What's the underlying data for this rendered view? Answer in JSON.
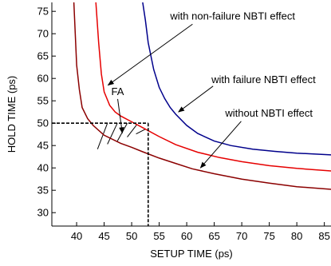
{
  "chart_data": {
    "type": "line",
    "title": "",
    "xlabel": "SETUP TIME  (ps)",
    "ylabel": "HOLD TIME (ps)",
    "xlim": [
      37,
      86.5
    ],
    "ylim": [
      27,
      77
    ],
    "xticks": [
      40,
      45,
      50,
      55,
      60,
      65,
      70,
      75,
      80,
      85
    ],
    "yticks": [
      30,
      35,
      40,
      45,
      50,
      55,
      60,
      65,
      70,
      75
    ],
    "grid": false,
    "series": [
      {
        "color": "#8b0000",
        "x": [
          39.5,
          40.0,
          40.5,
          41.0,
          42.0,
          43.0,
          45.0,
          48.0,
          50.0,
          52.0,
          55.0,
          58.0,
          61.0,
          65.0,
          70.0,
          75.0,
          80.0,
          86.5
        ],
        "y": [
          77,
          63,
          57.5,
          53.5,
          51,
          49.5,
          47.3,
          45.5,
          44.6,
          43.6,
          42.2,
          41.0,
          39.8,
          38.7,
          37.5,
          36.6,
          35.8,
          35.2
        ]
      },
      {
        "color": "#e60000",
        "x": [
          43.5,
          44.0,
          44.5,
          45.0,
          46.0,
          47.0,
          48.0,
          50.0,
          52.0,
          55.0,
          58.0,
          62.0,
          66.0,
          70.0,
          75.0,
          80.0,
          86.5
        ],
        "y": [
          77,
          68,
          61,
          57,
          54,
          52.5,
          51.6,
          50.3,
          49.0,
          47.0,
          45.2,
          43.5,
          42.3,
          41.4,
          40.5,
          39.9,
          39.3
        ]
      },
      {
        "color": "#00008b",
        "x": [
          52.0,
          52.5,
          53.0,
          54.0,
          55.0,
          56.0,
          57.0,
          58.0,
          60.0,
          62.0,
          65.0,
          68.0,
          72.0,
          76.0,
          80.0,
          86.5
        ],
        "y": [
          77,
          73,
          68,
          62,
          58,
          55.5,
          53.5,
          52,
          49.5,
          47.7,
          46.0,
          45.0,
          44.2,
          43.7,
          43.3,
          42.9
        ]
      }
    ],
    "reference_lines": {
      "x": 53,
      "y": 50
    },
    "annotations": [
      {
        "text": "with non-failure NBTI effect",
        "x": 57,
        "y": 73.2,
        "arrow_to_x": 45.7,
        "arrow_to_y": 58.5
      },
      {
        "text": "with failure NBTI effect",
        "x": 64.5,
        "y": 59,
        "arrow_to_x": 58.5,
        "arrow_to_y": 52.5
      },
      {
        "text": "without NBTI effect",
        "x": 67,
        "y": 51.5,
        "arrow_to_x": 62.5,
        "arrow_to_y": 40
      },
      {
        "text": "FA",
        "x": 46.3,
        "y": 56.3,
        "arrow_to_x": 48.3,
        "arrow_to_y": 47.8
      }
    ]
  }
}
